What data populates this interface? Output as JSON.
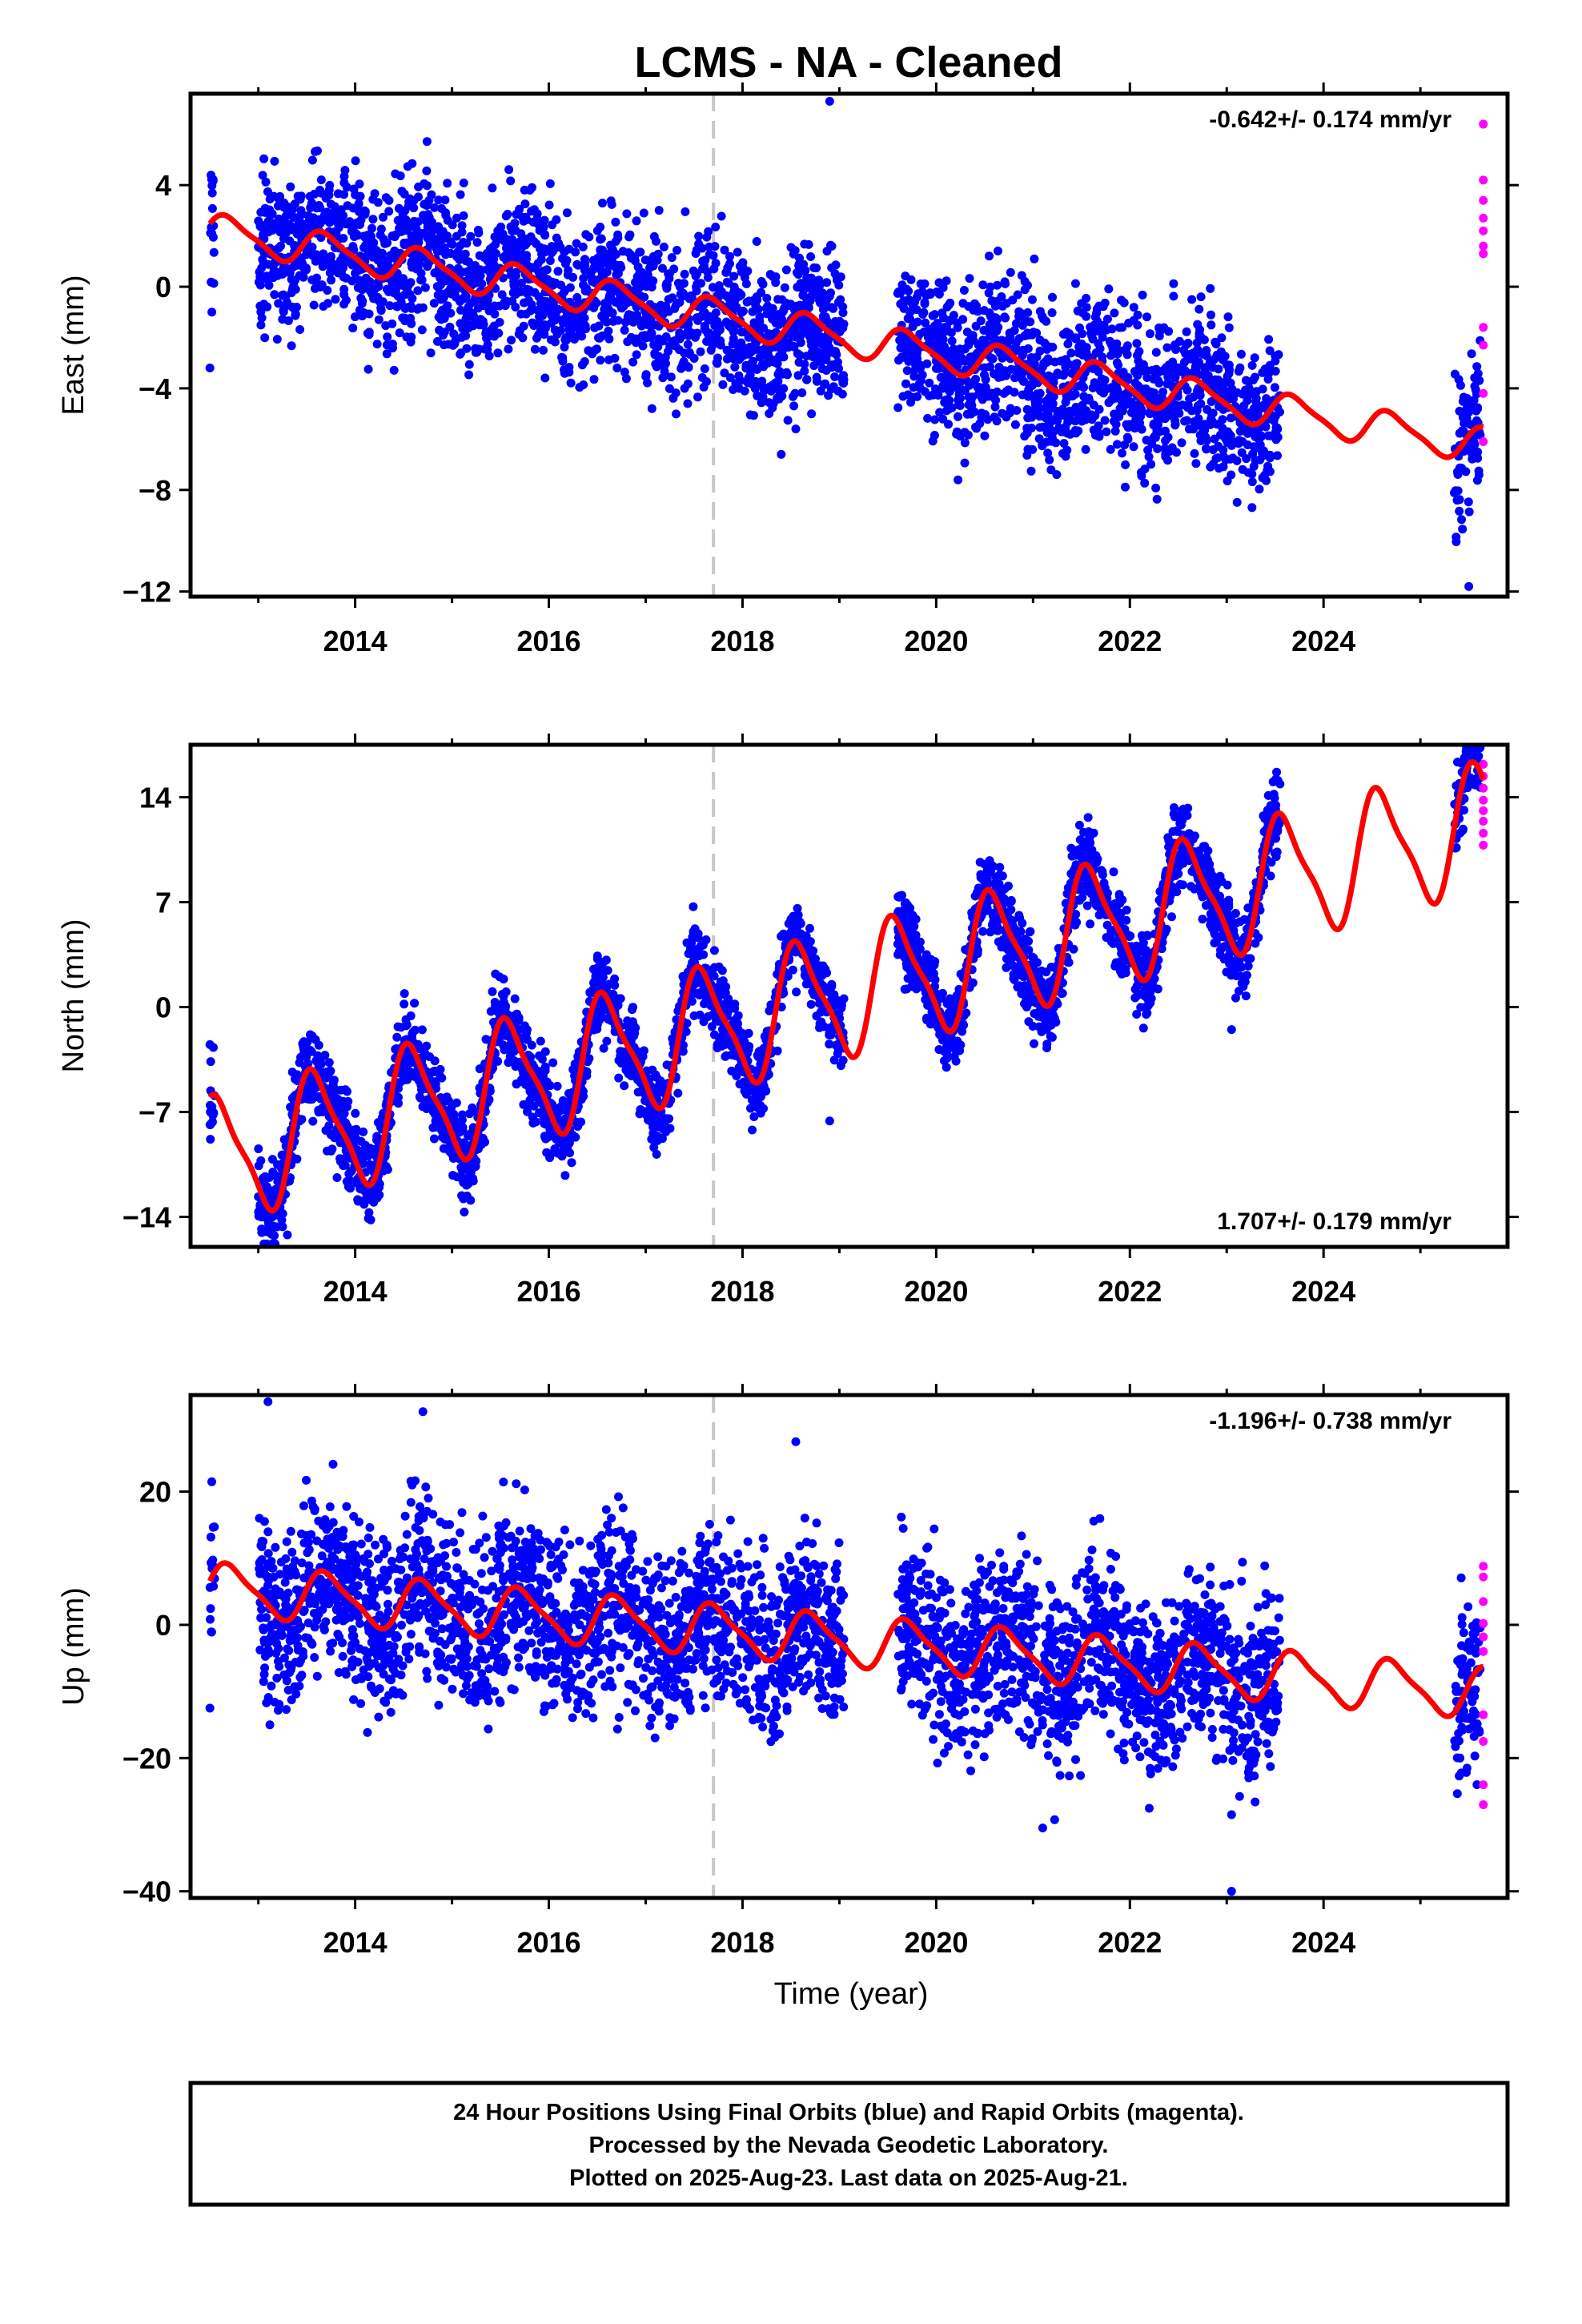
{
  "chart_data": [
    {
      "type": "scatter",
      "title": "LCMS  - NA - Cleaned",
      "ylabel": "East (mm)",
      "xlabel": "",
      "xlim": [
        2012.3,
        2025.9
      ],
      "ylim": [
        -12.2,
        7.6
      ],
      "yticks": [
        4,
        0,
        -4,
        -8,
        -12
      ],
      "yticklabels": [
        "4",
        "0",
        "−4",
        "−8",
        "−12"
      ],
      "xticks": [
        2014,
        2016,
        2018,
        2020,
        2022,
        2024
      ],
      "xticklabels": [
        "2014",
        "2016",
        "2018",
        "2020",
        "2022",
        "2024"
      ],
      "rate_label": "-0.642+/- 0.174 mm/yr",
      "rate_position": "top-right",
      "vline_x": 2017.7,
      "model": {
        "offset": 2.2,
        "rate": -0.642,
        "amp": 0.65,
        "phase": 0.3,
        "steps": [
          {
            "t": 2017.7,
            "dy": 0
          }
        ]
      },
      "final_orbits": {
        "segments": [
          [
            2012.5,
            2012.55
          ],
          [
            2013.0,
            2019.05
          ],
          [
            2019.6,
            2023.55
          ],
          [
            2025.35,
            2025.62
          ]
        ],
        "spread": 1.5,
        "outliers": [
          [
            2018.4,
            -6.6
          ],
          [
            2018.55,
            -5.6
          ],
          [
            2018.9,
            7.3
          ],
          [
            2025.5,
            -11.8
          ],
          [
            2012.5,
            -3.2
          ],
          [
            2012.52,
            -1.0
          ]
        ]
      },
      "rapid_orbits": {
        "x": [
          2025.65,
          2025.65,
          2025.65,
          2025.65,
          2025.65,
          2025.65,
          2025.65,
          2025.65,
          2025.65,
          2025.65,
          2025.65
        ],
        "y": [
          6.4,
          4.2,
          3.4,
          2.7,
          2.2,
          1.6,
          1.3,
          -1.6,
          -2.3,
          -4.2,
          -6.1
        ]
      },
      "series": [
        {
          "name": "Final Orbits (blue)",
          "color": "#0000ff"
        },
        {
          "name": "Rapid Orbits (magenta)",
          "color": "#ff00ff"
        },
        {
          "name": "model",
          "color": "#ff0000"
        }
      ]
    },
    {
      "type": "scatter",
      "title": "",
      "ylabel": "North (mm)",
      "xlabel": "",
      "xlim": [
        2012.3,
        2025.9
      ],
      "ylim": [
        -16,
        17.5
      ],
      "yticks": [
        14,
        7,
        0,
        -7,
        -14
      ],
      "yticklabels": [
        "14",
        "7",
        "0",
        "−7",
        "−14"
      ],
      "xticks": [
        2014,
        2016,
        2018,
        2020,
        2022,
        2024
      ],
      "xticklabels": [
        "2014",
        "2016",
        "2018",
        "2020",
        "2022",
        "2024"
      ],
      "rate_label": "1.707+/- 0.179 mm/yr",
      "rate_position": "bottom-right",
      "vline_x": 2017.7,
      "model": {
        "offset": -10.3,
        "rate": 1.707,
        "amp": 4.0,
        "phase": 1.0,
        "steps": [
          {
            "t": 2017.7,
            "dy": 0
          }
        ]
      },
      "final_orbits": {
        "segments": [
          [
            2012.5,
            2012.55
          ],
          [
            2013.0,
            2019.05
          ],
          [
            2019.6,
            2023.55
          ],
          [
            2025.35,
            2025.62
          ]
        ],
        "spread": 1.4,
        "outliers": [
          [
            2013.3,
            -15.2
          ],
          [
            2018.1,
            -8.2
          ],
          [
            2018.9,
            -7.6
          ],
          [
            2023.05,
            -1.5
          ],
          [
            2012.5,
            -2.5
          ]
        ]
      },
      "rapid_orbits": {
        "x": [
          2025.65,
          2025.65,
          2025.65,
          2025.65,
          2025.65,
          2025.65,
          2025.65,
          2025.65
        ],
        "y": [
          16.2,
          15.4,
          14.6,
          13.8,
          13.1,
          12.4,
          11.6,
          10.8
        ]
      },
      "series": [
        {
          "name": "Final Orbits (blue)",
          "color": "#0000ff"
        },
        {
          "name": "Rapid Orbits (magenta)",
          "color": "#ff00ff"
        },
        {
          "name": "model",
          "color": "#ff0000"
        }
      ]
    },
    {
      "type": "scatter",
      "title": "",
      "ylabel": "Up (mm)",
      "xlabel": "Time (year)",
      "xlim": [
        2012.3,
        2025.9
      ],
      "ylim": [
        -41,
        34.5
      ],
      "yticks": [
        20,
        0,
        -20,
        -40
      ],
      "yticklabels": [
        "20",
        "0",
        "−20",
        "−40"
      ],
      "xticks": [
        2014,
        2016,
        2018,
        2020,
        2022,
        2024
      ],
      "xticklabels": [
        "2014",
        "2016",
        "2018",
        "2020",
        "2022",
        "2024"
      ],
      "rate_label": "-1.196+/- 0.738 mm/yr",
      "rate_position": "top-right",
      "vline_x": 2017.7,
      "model": {
        "offset": 5.5,
        "rate": -1.196,
        "amp": 3.6,
        "phase": 0.2,
        "steps": [
          {
            "t": 2017.7,
            "dy": 0
          }
        ]
      },
      "final_orbits": {
        "segments": [
          [
            2012.5,
            2012.55
          ],
          [
            2013.0,
            2019.05
          ],
          [
            2019.6,
            2023.55
          ],
          [
            2025.35,
            2025.62
          ]
        ],
        "spread": 6.5,
        "outliers": [
          [
            2013.1,
            33.5
          ],
          [
            2014.7,
            32.0
          ],
          [
            2018.55,
            27.5
          ],
          [
            2021.1,
            -30.5
          ],
          [
            2023.05,
            -28.5
          ],
          [
            2023.05,
            -40.0
          ],
          [
            2012.5,
            -12.5
          ]
        ]
      },
      "rapid_orbits": {
        "x": [
          2025.65,
          2025.65,
          2025.65,
          2025.65,
          2025.65,
          2025.65,
          2025.65,
          2025.65,
          2025.65,
          2025.65
        ],
        "y": [
          8.8,
          7.2,
          3.5,
          0.2,
          -1.8,
          -4.0,
          -13.5,
          -17.5,
          -24.0,
          -27.0
        ]
      },
      "series": [
        {
          "name": "Final Orbits (blue)",
          "color": "#0000ff"
        },
        {
          "name": "Rapid Orbits (magenta)",
          "color": "#ff00ff"
        },
        {
          "name": "model",
          "color": "#ff0000"
        }
      ]
    }
  ],
  "caption": {
    "line1": "24 Hour Positions Using Final Orbits (blue) and Rapid Orbits (magenta).",
    "line2": "Processed by the Nevada Geodetic Laboratory.",
    "line3": "Plotted on 2025-Aug-23. Last data on 2025-Aug-21."
  },
  "colors": {
    "final": "#0000ff",
    "rapid": "#ff00ff",
    "model": "#ff0000",
    "vline": "#c8c8c8"
  }
}
